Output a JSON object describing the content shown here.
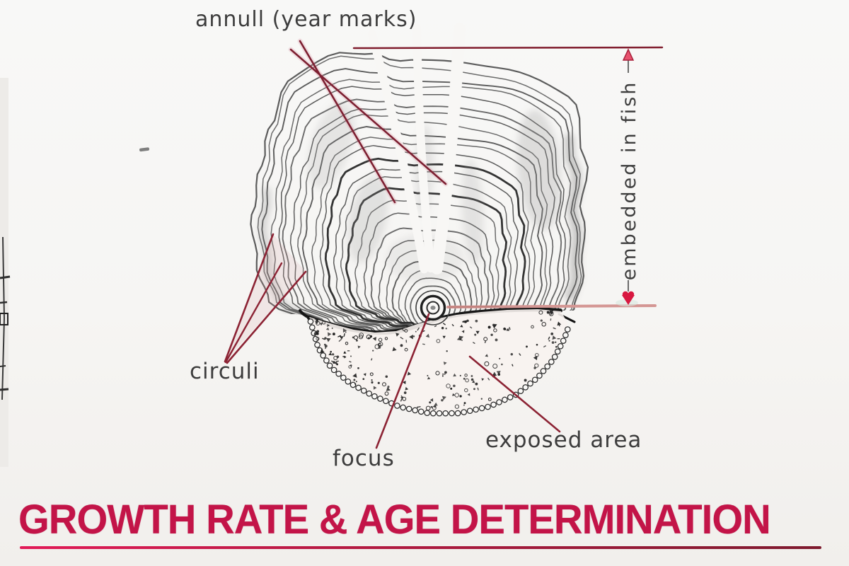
{
  "title": {
    "text": "GROWTH RATE & AGE DETERMINATION"
  },
  "diagram": {
    "subject": "fish scale annotated for growth rate and age determination",
    "labels": {
      "annuli": "annull (year marks)",
      "circuli": "circuli",
      "focus": "focus",
      "exposed_area": "exposed area",
      "embedded_in_fish": "embedded in fish"
    }
  },
  "colors": {
    "title": "#c31448",
    "leader_line": "#8c2334",
    "leader_line_dark": "#7d1f31",
    "pink_dimension_line": "#d49693",
    "arrow_red": "#d81840",
    "ink": "#3d3d3d",
    "ring_ink": "#4a4a4a",
    "heavy_line": "#161616",
    "paper": "#f6f5f3"
  }
}
